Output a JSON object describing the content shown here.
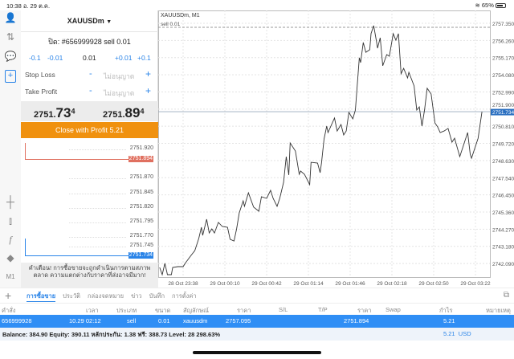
{
  "status": {
    "time": "10:38",
    "date": "อ. 29 ต.ค.",
    "battery": "65%"
  },
  "panel": {
    "symbol": "XAUUSDm",
    "order_line": "ปิด: #656999928 sell 0.01",
    "volume": {
      "minus_big": "-0.1",
      "minus_small": "-0.01",
      "value": "0.01",
      "plus_small": "+0.01",
      "plus_big": "+0.1"
    },
    "stop_loss": {
      "label": "Stop Loss",
      "minus": "-",
      "value": "ไม่อนุญาต",
      "plus": "+"
    },
    "take_profit": {
      "label": "Take Profit",
      "minus": "-",
      "value": "ไม่อนุญาต",
      "plus": "+"
    },
    "bid": {
      "main": "2751.",
      "big": "73",
      "sup": "4"
    },
    "ask": {
      "main": "2751.",
      "big": "89",
      "sup": "4"
    },
    "close_button": "Close with Profit 5.21",
    "mini_levels": [
      "2751.920",
      "2751.870",
      "2751.845",
      "2751.820",
      "2751.795",
      "2751.770",
      "2751.745"
    ],
    "mini_ask": "2751.894",
    "mini_bid": "2751.734",
    "warning": "คำเตือน! การซื้อขายจะถูกดำเนินการตามสภาพตลาด ความแตกต่างกับราคาที่ส่งอาจมีมาก!"
  },
  "left_toolbar": {
    "timeframe": "M1"
  },
  "chart_data": {
    "type": "line",
    "title": "XAUUSDm, M1",
    "order_label": "sell 0.01",
    "order_price": 2757.095,
    "current_price": 2751.734,
    "current_price_label": "2751.734",
    "ylim": [
      2741.3,
      2757.9
    ],
    "yticks": [
      "2757.350",
      "2756.260",
      "2755.170",
      "2754.080",
      "2752.990",
      "2751.900",
      "2750.810",
      "2749.720",
      "2748.630",
      "2747.540",
      "2746.450",
      "2745.360",
      "2744.270",
      "2743.180",
      "2742.090"
    ],
    "xticks": [
      "28 Oct 23:38",
      "29 Oct 00:10",
      "29 Oct 00:42",
      "29 Oct 01:14",
      "29 Oct 01:46",
      "29 Oct 02:18",
      "29 Oct 02:50",
      "29 Oct 03:22"
    ],
    "grid": true,
    "x": [
      "23:20",
      "23:22",
      "23:24",
      "23:26",
      "23:29",
      "23:30",
      "23:34",
      "23:38",
      "23:40",
      "23:44",
      "23:47",
      "23:50",
      "23:52",
      "23:53",
      "23:56",
      "23:58",
      "00:00",
      "00:02",
      "00:05",
      "00:08",
      "00:12",
      "00:14",
      "00:17",
      "00:19",
      "00:21",
      "00:24",
      "00:25",
      "00:28",
      "00:32",
      "00:36",
      "00:38",
      "00:42",
      "00:45",
      "00:47",
      "00:50",
      "00:52",
      "00:55",
      "00:57",
      "00:59",
      "01:00",
      "01:04",
      "01:07",
      "01:08",
      "01:11",
      "01:15",
      "01:16",
      "01:21",
      "01:23",
      "01:24",
      "01:26",
      "01:28",
      "01:29",
      "01:34",
      "01:36",
      "01:39",
      "01:41",
      "01:43",
      "01:45",
      "01:48",
      "01:50",
      "01:53",
      "01:54",
      "01:56",
      "01:58",
      "02:01",
      "02:02",
      "02:04",
      "02:06",
      "02:07",
      "02:09",
      "02:11",
      "02:14",
      "02:16",
      "02:19",
      "02:21",
      "02:23",
      "02:25",
      "02:27",
      "02:30",
      "02:31",
      "02:35",
      "02:37",
      "02:39",
      "02:41",
      "02:43",
      "02:45",
      "02:48",
      "02:51",
      "02:53",
      "02:55",
      "02:58",
      "03:01",
      "03:04",
      "03:06",
      "03:10",
      "03:16",
      "03:18",
      "03:19",
      "03:24",
      "03:27"
    ],
    "y": [
      2741.84,
      2741.38,
      2742.1,
      2741.38,
      2741.38,
      2741.84,
      2741.89,
      2741.89,
      2742.15,
      2742.6,
      2742.91,
      2743.68,
      2744.39,
      2743.88,
      2744.9,
      2744.03,
      2744.29,
      2744.03,
      2744.7,
      2744.44,
      2744.39,
      2743.63,
      2743.52,
      2744.29,
      2745.31,
      2746.07,
      2745.72,
      2746.58,
      2745.67,
      2745.41,
      2746.33,
      2746.23,
      2746.74,
      2746.23,
      2745.72,
      2746.23,
      2747.25,
      2748.88,
      2747.71,
      2749.75,
      2749.24,
      2747.76,
      2747.96,
      2747.76,
      2747.1,
      2748.52,
      2748.47,
      2747.86,
      2748.47,
      2750.0,
      2750.82,
      2750.41,
      2751.33,
      2750.51,
      2750.92,
      2750.26,
      2750.51,
      2751.69,
      2751.28,
      2751.84,
      2755.16,
      2754.85,
      2756.13,
      2755.51,
      2755.67,
      2756.69,
      2757.2,
      2756.28,
      2755.77,
      2756.43,
      2754.65,
      2755.36,
      2755.26,
      2756.69,
      2756.28,
      2756.69,
      2754.14,
      2754.49,
      2753.88,
      2754.24,
      2753.37,
      2751.84,
      2752.04,
      2750.82,
      2751.84,
      2753.22,
      2752.86,
      2751.02,
      2750.77,
      2750.41,
      2750.51,
      2750.67,
      2749.8,
      2750.05,
      2748.88,
      2750.41,
      2749.03,
      2748.78,
      2750.05,
      2751.73
    ]
  },
  "tabs": [
    "การซื้อขาย",
    "ประวัติ",
    "กล่องจดหมาย",
    "ข่าว",
    "บันทึก",
    "การตั้งค่า"
  ],
  "table": {
    "headers": [
      "คำสั่ง",
      "เวลา",
      "ประเภท",
      "ขนาด",
      "สัญลักษณ์",
      "ราคา",
      "S/L",
      "T/P",
      "ราคา",
      "Swap",
      "กำไร",
      "หมายเหตุ"
    ],
    "rows": [
      [
        "656999928",
        "10.29 02:12",
        "sell",
        "0.01",
        "xauusdm",
        "2757.095",
        "",
        "",
        "2751.894",
        "",
        "5.21",
        ""
      ]
    ]
  },
  "balance": {
    "text": "Balance: 384.90 Equity: 390.11 หลักประกัน: 1.38 ฟรี: 388.73 Level: 28 298.63%",
    "profit": "5.21",
    "currency": "USD"
  },
  "colors": {
    "accent": "#2a84e8",
    "close_button": "#f0910f",
    "selected_row": "#2f8ef5",
    "ask_line": "#e07060",
    "bid_line": "#2a84e8"
  }
}
